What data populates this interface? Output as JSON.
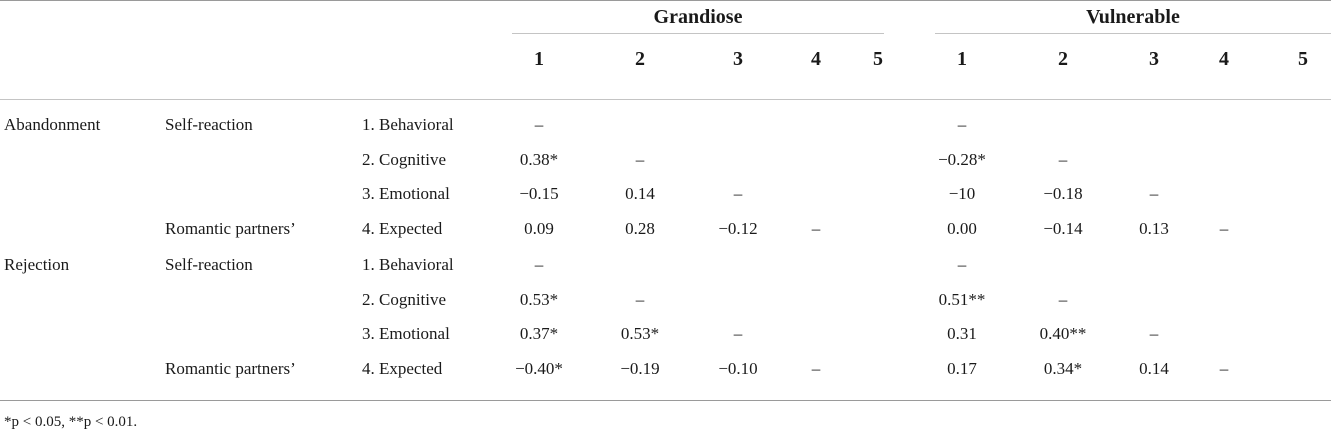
{
  "header": {
    "groups": [
      "Grandiose",
      "Vulnerable"
    ],
    "grandiose_cols": [
      "1",
      "2",
      "3",
      "4",
      "5"
    ],
    "vulnerable_cols": [
      "1",
      "2",
      "3",
      "4",
      "5"
    ]
  },
  "rows": [
    {
      "category": "Abandonment",
      "subcategory": "Self-reaction",
      "measure": "1. Behavioral",
      "grandiose": [
        "–",
        "",
        "",
        "",
        ""
      ],
      "vulnerable": [
        "–",
        "",
        "",
        "",
        ""
      ]
    },
    {
      "category": "",
      "subcategory": "",
      "measure": "2. Cognitive",
      "grandiose": [
        "0.38*",
        "–",
        "",
        "",
        ""
      ],
      "vulnerable": [
        "−0.28*",
        "–",
        "",
        "",
        ""
      ]
    },
    {
      "category": "",
      "subcategory": "",
      "measure": "3. Emotional",
      "grandiose": [
        "−0.15",
        "0.14",
        "–",
        "",
        ""
      ],
      "vulnerable": [
        "−10",
        "−0.18",
        "–",
        "",
        ""
      ]
    },
    {
      "category": "",
      "subcategory": "Romantic partners’",
      "measure": "4. Expected",
      "grandiose": [
        "0.09",
        "0.28",
        "−0.12",
        "–",
        ""
      ],
      "vulnerable": [
        "0.00",
        "−0.14",
        "0.13",
        "–",
        ""
      ]
    },
    {
      "category": "Rejection",
      "subcategory": "Self-reaction",
      "measure": "1. Behavioral",
      "grandiose": [
        "–",
        "",
        "",
        "",
        ""
      ],
      "vulnerable": [
        "–",
        "",
        "",
        "",
        ""
      ]
    },
    {
      "category": "",
      "subcategory": "",
      "measure": "2. Cognitive",
      "grandiose": [
        "0.53*",
        "–",
        "",
        "",
        ""
      ],
      "vulnerable": [
        "0.51**",
        "–",
        "",
        "",
        ""
      ]
    },
    {
      "category": "",
      "subcategory": "",
      "measure": "3. Emotional",
      "grandiose": [
        "0.37*",
        "0.53*",
        "–",
        "",
        ""
      ],
      "vulnerable": [
        "0.31",
        "0.40**",
        "–",
        "",
        ""
      ]
    },
    {
      "category": "",
      "subcategory": "Romantic partners’",
      "measure": "4. Expected",
      "grandiose": [
        "−0.40*",
        "−0.19",
        "−0.10",
        "–",
        ""
      ],
      "vulnerable": [
        "0.17",
        "0.34*",
        "0.14",
        "–",
        ""
      ]
    }
  ],
  "footnote": "*p < 0.05, **p < 0.01."
}
